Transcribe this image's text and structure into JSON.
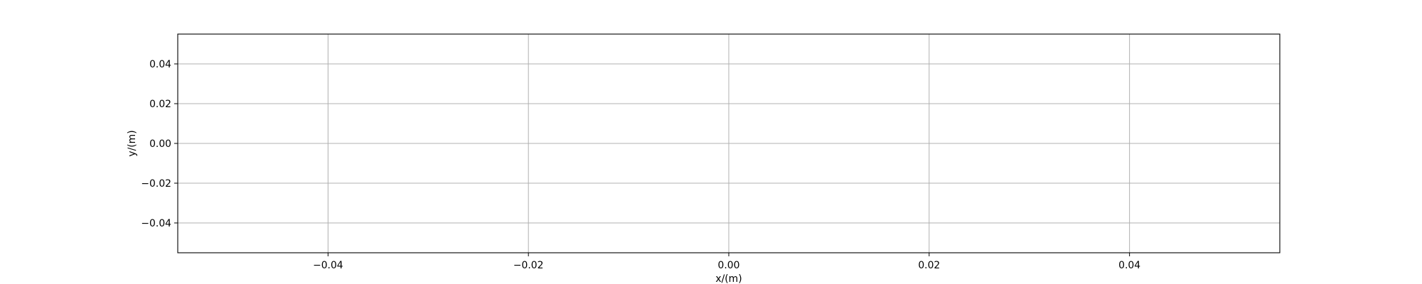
{
  "chart_data": {
    "type": "scatter",
    "title": "",
    "xlabel": "x/(m)",
    "ylabel": "y/(m)",
    "xlim": [
      -0.055,
      0.055
    ],
    "ylim": [
      -0.055,
      0.055
    ],
    "grid": true,
    "series": [],
    "x_ticks": [
      {
        "value": -0.04,
        "label": "−0.04"
      },
      {
        "value": -0.02,
        "label": "−0.02"
      },
      {
        "value": 0.0,
        "label": "0.00"
      },
      {
        "value": 0.02,
        "label": "0.02"
      },
      {
        "value": 0.04,
        "label": "0.04"
      }
    ],
    "y_ticks": [
      {
        "value": 0.04,
        "label": "0.04"
      },
      {
        "value": 0.02,
        "label": "0.02"
      },
      {
        "value": 0.0,
        "label": "0.00"
      },
      {
        "value": -0.02,
        "label": "−0.02"
      },
      {
        "value": -0.04,
        "label": "−0.04"
      }
    ],
    "colors": {
      "grid": "#b0b0b0",
      "axes": "#000000",
      "text": "#000000"
    }
  }
}
